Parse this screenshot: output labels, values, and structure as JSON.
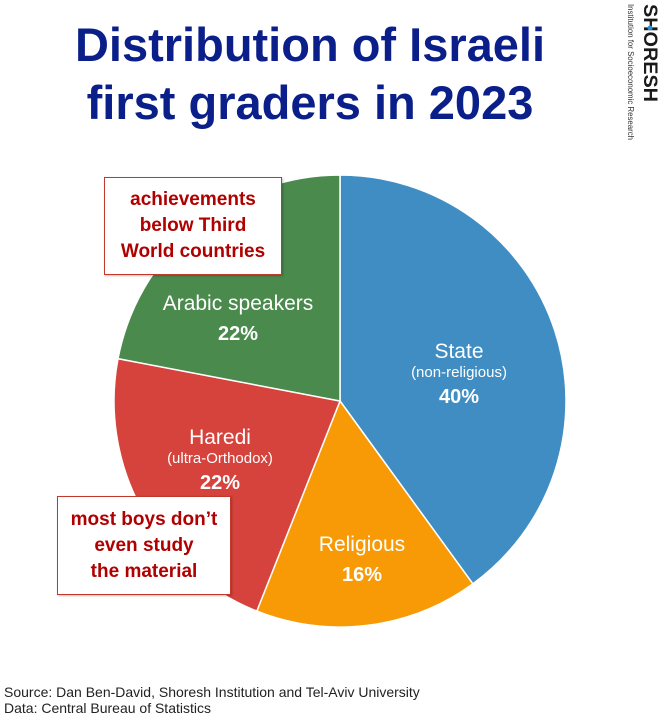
{
  "title_lines": [
    "Distribution of Israeli",
    "first graders in 2023"
  ],
  "logo": {
    "name": "SHORESH",
    "tagline": "Institution for Socioeconomic Research"
  },
  "chart_data": {
    "type": "pie",
    "title": "Distribution of Israeli first graders in 2023",
    "start": "12 o'clock, clockwise",
    "slices": [
      {
        "label": "State",
        "sublabel": "(non-religious)",
        "value": 40,
        "value_label": "40%",
        "color": "#3f8dc3"
      },
      {
        "label": "Religious",
        "sublabel": "",
        "value": 16,
        "value_label": "16%",
        "color": "#f79a06"
      },
      {
        "label": "Haredi",
        "sublabel": "(ultra-Orthodox)",
        "value": 22,
        "value_label": "22%",
        "color": "#d6423c"
      },
      {
        "label": "Arabic speakers",
        "sublabel": "",
        "value": 22,
        "value_label": "22%",
        "color": "#4a8a4d"
      }
    ]
  },
  "callouts": {
    "arabic": [
      "achievements",
      "below Third",
      "World countries"
    ],
    "haredi": [
      "most boys don’t",
      "even study",
      "the material"
    ]
  },
  "footer": {
    "source": "Source: Dan Ben-David, Shoresh Institution and Tel-Aviv University",
    "data": "Data: Central Bureau of Statistics"
  },
  "colors": {
    "title": "#0b1f8a",
    "callout_text": "#b00000",
    "logo_dot": "#2a8fd6"
  }
}
